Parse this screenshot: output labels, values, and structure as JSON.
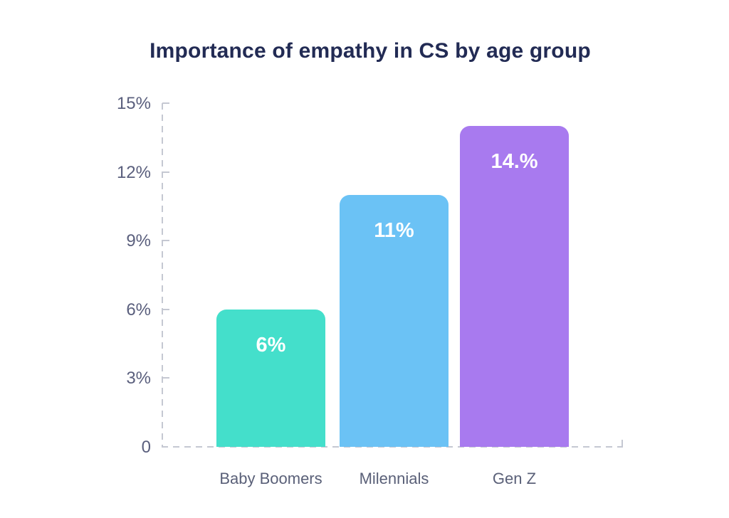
{
  "chart_data": {
    "type": "bar",
    "title": "Importance of empathy in CS by age group",
    "categories": [
      "Baby Boomers",
      "Milennials",
      "Gen Z"
    ],
    "values": [
      6,
      11,
      14
    ],
    "value_labels": [
      "6%",
      "11%",
      "14.%"
    ],
    "bar_colors": [
      "#44dfcb",
      "#6bc2f5",
      "#a87aef"
    ],
    "xlabel": "",
    "ylabel": "",
    "ylim": [
      0,
      15
    ],
    "yticks": [
      {
        "value": 15,
        "label": "15%"
      },
      {
        "value": 12,
        "label": "12%"
      },
      {
        "value": 9,
        "label": "9%"
      },
      {
        "value": 6,
        "label": "6%"
      },
      {
        "value": 3,
        "label": "3%"
      },
      {
        "value": 0,
        "label": "0"
      }
    ],
    "grid": "off",
    "legend": "none",
    "axis_style": "dashed gray axis lines with outward tick marks"
  },
  "colors": {
    "background": "#ffffff",
    "title_text": "#222b54",
    "axis_label_text": "#5a5f7d",
    "axis_line": "#c5c8d2",
    "value_label_text": "#ffffff",
    "bar_teal": "#44dfcb",
    "bar_blue": "#6bc2f5",
    "bar_purple": "#a87aef"
  }
}
